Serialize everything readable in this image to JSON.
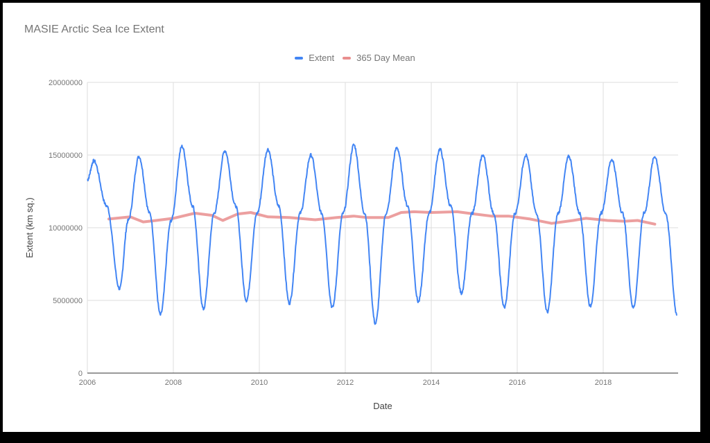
{
  "chart_data": {
    "type": "line",
    "title": "MASIE Arctic Sea Ice Extent",
    "xlabel": "Date",
    "ylabel": "Extent (km sq.)",
    "xlim": [
      2006,
      2019.72
    ],
    "ylim": [
      0,
      20000000
    ],
    "x_ticks": [
      "2006",
      "2008",
      "2010",
      "2012",
      "2014",
      "2016",
      "2018"
    ],
    "y_ticks": [
      "0",
      "5000000",
      "10000000",
      "15000000",
      "20000000"
    ],
    "grid": true,
    "legend_position": "top",
    "series": [
      {
        "name": "Extent",
        "color": "#4285f4",
        "x": [
          2006.0,
          2006.15,
          2006.45,
          2006.75,
          2006.95,
          2007.2,
          2007.45,
          2007.7,
          2007.95,
          2008.2,
          2008.45,
          2008.7,
          2008.95,
          2009.2,
          2009.45,
          2009.7,
          2009.95,
          2010.2,
          2010.45,
          2010.7,
          2010.95,
          2011.2,
          2011.45,
          2011.7,
          2011.95,
          2012.2,
          2012.45,
          2012.7,
          2012.95,
          2013.2,
          2013.45,
          2013.7,
          2013.95,
          2014.2,
          2014.45,
          2014.7,
          2014.95,
          2015.2,
          2015.45,
          2015.7,
          2015.95,
          2016.2,
          2016.45,
          2016.7,
          2016.95,
          2017.2,
          2017.45,
          2017.7,
          2017.95,
          2018.2,
          2018.45,
          2018.7,
          2018.95,
          2019.2,
          2019.45,
          2019.72
        ],
        "values": [
          13300000,
          14600000,
          11500000,
          5800000,
          10500000,
          14900000,
          11000000,
          4000000,
          10500000,
          15600000,
          11500000,
          4400000,
          11000000,
          15300000,
          11500000,
          5000000,
          11000000,
          15400000,
          11500000,
          4800000,
          11000000,
          15000000,
          11000000,
          4500000,
          11000000,
          15700000,
          11000000,
          3400000,
          11000000,
          15500000,
          11500000,
          4900000,
          11000000,
          15400000,
          11500000,
          5500000,
          11000000,
          15000000,
          11000000,
          4500000,
          11000000,
          15000000,
          11000000,
          4200000,
          11000000,
          14900000,
          11000000,
          4600000,
          11000000,
          14700000,
          11000000,
          4500000,
          11000000,
          14900000,
          11000000,
          4000000
        ]
      },
      {
        "name": "365 Day Mean",
        "color": "#e98e8e",
        "x": [
          2006.5,
          2007.0,
          2007.3,
          2007.6,
          2008.0,
          2008.5,
          2008.9,
          2009.15,
          2009.5,
          2009.8,
          2010.2,
          2010.7,
          2011.3,
          2011.8,
          2012.2,
          2012.5,
          2013.0,
          2013.3,
          2013.6,
          2014.0,
          2014.6,
          2015.0,
          2015.4,
          2015.8,
          2016.3,
          2016.8,
          2017.3,
          2017.6,
          2018.1,
          2018.5,
          2018.8,
          2019.2
        ],
        "values": [
          10600000,
          10750000,
          10400000,
          10500000,
          10650000,
          11000000,
          10850000,
          10500000,
          10950000,
          11050000,
          10750000,
          10700000,
          10550000,
          10700000,
          10800000,
          10700000,
          10700000,
          11050000,
          11100000,
          11050000,
          11100000,
          10950000,
          10800000,
          10800000,
          10600000,
          10300000,
          10500000,
          10650000,
          10500000,
          10450000,
          10500000,
          10250000
        ]
      }
    ]
  },
  "legend": [
    {
      "label": "Extent",
      "color": "#4285f4"
    },
    {
      "label": "365 Day Mean",
      "color": "#e98e8e"
    }
  ]
}
